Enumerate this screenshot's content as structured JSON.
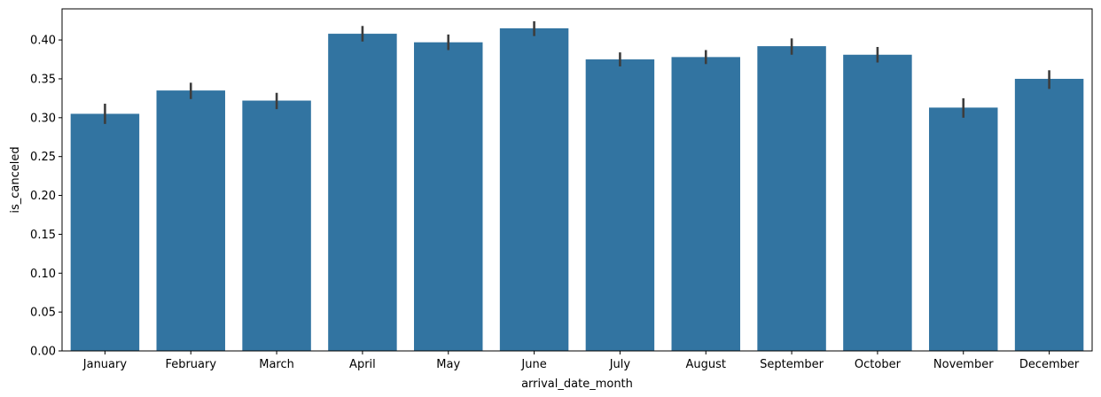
{
  "chart_data": {
    "type": "bar",
    "categories": [
      "January",
      "February",
      "March",
      "April",
      "May",
      "June",
      "July",
      "August",
      "September",
      "October",
      "November",
      "December"
    ],
    "values": [
      0.305,
      0.335,
      0.322,
      0.408,
      0.397,
      0.415,
      0.375,
      0.378,
      0.392,
      0.381,
      0.313,
      0.35
    ],
    "error_low": [
      0.292,
      0.324,
      0.311,
      0.398,
      0.387,
      0.405,
      0.366,
      0.369,
      0.381,
      0.371,
      0.3,
      0.337
    ],
    "error_high": [
      0.318,
      0.345,
      0.332,
      0.418,
      0.407,
      0.424,
      0.384,
      0.387,
      0.402,
      0.391,
      0.325,
      0.361
    ],
    "xlabel": "arrival_date_month",
    "ylabel": "is_canceled",
    "ylim": [
      0,
      0.44
    ],
    "yticks": [
      "0.00",
      "0.05",
      "0.10",
      "0.15",
      "0.20",
      "0.25",
      "0.30",
      "0.35",
      "0.40"
    ],
    "bar_color": "#3274a1",
    "error_color": "#3d3d3d",
    "grid": false
  }
}
